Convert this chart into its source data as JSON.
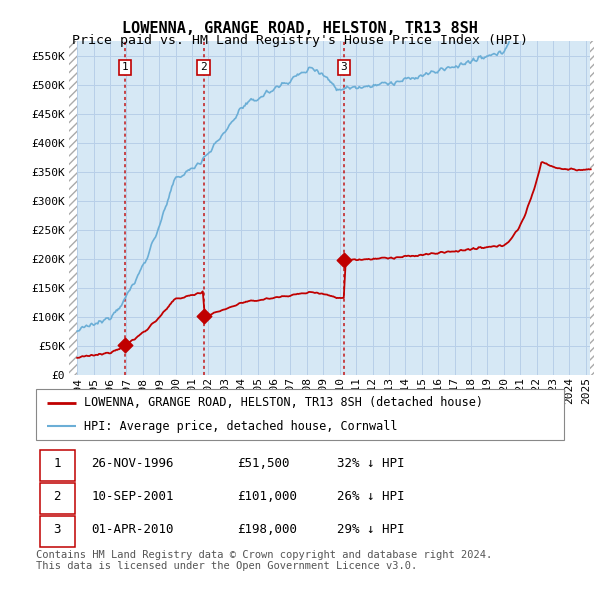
{
  "title": "LOWENNA, GRANGE ROAD, HELSTON, TR13 8SH",
  "subtitle": "Price paid vs. HM Land Registry's House Price Index (HPI)",
  "ylim": [
    0,
    575000
  ],
  "yticks": [
    0,
    50000,
    100000,
    150000,
    200000,
    250000,
    300000,
    350000,
    400000,
    450000,
    500000,
    550000
  ],
  "ytick_labels": [
    "£0",
    "£50K",
    "£100K",
    "£150K",
    "£200K",
    "£250K",
    "£300K",
    "£350K",
    "£400K",
    "£450K",
    "£500K",
    "£550K"
  ],
  "xlim_start": 1993.5,
  "xlim_end": 2025.5,
  "sale_dates": [
    1996.92,
    2001.7,
    2010.25
  ],
  "sale_prices": [
    51500,
    101000,
    198000
  ],
  "sale_labels": [
    "1",
    "2",
    "3"
  ],
  "hpi_color": "#6baed6",
  "hpi_fill_color": "#d6e8f5",
  "sale_color": "#c00000",
  "grid_color": "#b8cfe8",
  "legend_entries": [
    "LOWENNA, GRANGE ROAD, HELSTON, TR13 8SH (detached house)",
    "HPI: Average price, detached house, Cornwall"
  ],
  "table_rows": [
    [
      "1",
      "26-NOV-1996",
      "£51,500",
      "32% ↓ HPI"
    ],
    [
      "2",
      "10-SEP-2001",
      "£101,000",
      "26% ↓ HPI"
    ],
    [
      "3",
      "01-APR-2010",
      "£198,000",
      "29% ↓ HPI"
    ]
  ],
  "footnote": "Contains HM Land Registry data © Crown copyright and database right 2024.\nThis data is licensed under the Open Government Licence v3.0.",
  "title_fontsize": 11,
  "subtitle_fontsize": 9.5,
  "tick_fontsize": 8,
  "legend_fontsize": 8.5,
  "table_fontsize": 9,
  "footnote_fontsize": 7.5
}
